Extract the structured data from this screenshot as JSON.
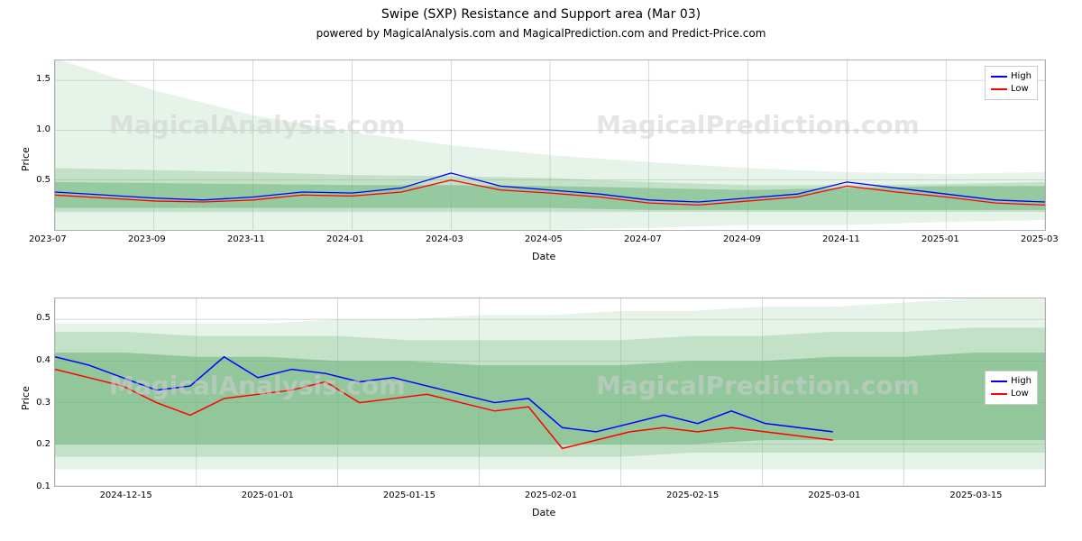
{
  "figure": {
    "title": "Swipe (SXP) Resistance and Support area (Mar 03)",
    "subtitle": "powered by MagicalAnalysis.com and MagicalPrediction.com and Predict-Price.com",
    "background_color": "#ffffff",
    "title_fontsize": 14,
    "subtitle_fontsize": 12
  },
  "legend": {
    "items": [
      {
        "label": "High",
        "color": "#0000ff"
      },
      {
        "label": "Low",
        "color": "#ff0000"
      }
    ],
    "border_color": "#cccccc",
    "background": "#ffffff",
    "fontsize": 10
  },
  "watermarks": {
    "top_left": "MagicalAnalysis.com",
    "top_right": "MagicalPrediction.com",
    "bottom_left": "MagicalAnalysis.com",
    "bottom_right": "MagicalPrediction.com",
    "color": "#d0d0d0",
    "fontsize": 28
  },
  "top_chart": {
    "type": "line_with_bands",
    "xlabel": "Date",
    "ylabel": "Price",
    "label_fontsize": 11,
    "xlim": [
      0,
      20
    ],
    "ylim": [
      0,
      1.7
    ],
    "yticks": [
      0.5,
      1.0,
      1.5
    ],
    "ytick_labels": [
      "0.5",
      "1.0",
      "1.5"
    ],
    "xticks": [
      0,
      2,
      4,
      6,
      8,
      10,
      12,
      14,
      16,
      18,
      20
    ],
    "xtick_labels": [
      "2023-07",
      "2023-09",
      "2023-11",
      "2024-01",
      "2024-03",
      "2024-05",
      "2024-07",
      "2024-09",
      "2024-11",
      "2025-01",
      "2025-03"
    ],
    "grid_color": "#b0b0b0",
    "line_width": 1.3,
    "bands": [
      {
        "color": "#9dcfa4",
        "opacity": 0.25,
        "upper": [
          1.72,
          1.4,
          1.15,
          0.98,
          0.85,
          0.75,
          0.68,
          0.62,
          0.58,
          0.56,
          0.58
        ],
        "lower": [
          0.0,
          0.0,
          0.0,
          0.0,
          0.0,
          0.0,
          0.02,
          0.05,
          0.05,
          0.08,
          0.1
        ]
      },
      {
        "color": "#7fbf8a",
        "opacity": 0.35,
        "upper": [
          0.62,
          0.6,
          0.58,
          0.55,
          0.54,
          0.52,
          0.48,
          0.45,
          0.45,
          0.46,
          0.48
        ],
        "lower": [
          0.18,
          0.18,
          0.18,
          0.18,
          0.18,
          0.18,
          0.18,
          0.18,
          0.18,
          0.18,
          0.18
        ]
      },
      {
        "color": "#5fae6f",
        "opacity": 0.45,
        "upper": [
          0.48,
          0.47,
          0.46,
          0.45,
          0.45,
          0.44,
          0.42,
          0.4,
          0.42,
          0.44,
          0.44
        ],
        "lower": [
          0.22,
          0.22,
          0.22,
          0.22,
          0.22,
          0.22,
          0.2,
          0.2,
          0.2,
          0.2,
          0.2
        ]
      }
    ],
    "series": [
      {
        "name": "High",
        "color": "#0000ff",
        "y": [
          0.38,
          0.35,
          0.32,
          0.3,
          0.33,
          0.38,
          0.37,
          0.42,
          0.57,
          0.44,
          0.4,
          0.36,
          0.3,
          0.28,
          0.32,
          0.36,
          0.48,
          0.42,
          0.36,
          0.3,
          0.28
        ]
      },
      {
        "name": "Low",
        "color": "#ff0000",
        "y": [
          0.35,
          0.32,
          0.29,
          0.28,
          0.3,
          0.35,
          0.34,
          0.38,
          0.5,
          0.4,
          0.37,
          0.33,
          0.27,
          0.25,
          0.29,
          0.33,
          0.44,
          0.38,
          0.33,
          0.27,
          0.25
        ]
      }
    ]
  },
  "bottom_chart": {
    "type": "line_with_bands",
    "xlabel": "Date",
    "ylabel": "Price",
    "label_fontsize": 11,
    "xlim": [
      0,
      14
    ],
    "ylim": [
      0.1,
      0.55
    ],
    "yticks": [
      0.1,
      0.2,
      0.3,
      0.4,
      0.5
    ],
    "ytick_labels": [
      "0.1",
      "0.2",
      "0.3",
      "0.4",
      "0.5"
    ],
    "xticks": [
      0,
      2,
      4,
      6,
      8,
      10,
      12,
      14
    ],
    "xtick_labels": [
      "2024-12-15",
      "2025-01-01",
      "2025-01-15",
      "2025-02-01",
      "2025-02-15",
      "2025-03-01",
      "2025-03-15",
      ""
    ],
    "xtick_offset": 1.0,
    "grid_color": "#b0b0b0",
    "line_width": 1.5,
    "bands": [
      {
        "color": "#9dcfa4",
        "opacity": 0.25,
        "upper": [
          0.49,
          0.49,
          0.49,
          0.49,
          0.5,
          0.5,
          0.51,
          0.51,
          0.52,
          0.52,
          0.53,
          0.53,
          0.54,
          0.55,
          0.55
        ],
        "lower": [
          0.14,
          0.14,
          0.14,
          0.14,
          0.14,
          0.14,
          0.14,
          0.14,
          0.14,
          0.14,
          0.14,
          0.14,
          0.14,
          0.14,
          0.14
        ]
      },
      {
        "color": "#7fbf8a",
        "opacity": 0.35,
        "upper": [
          0.47,
          0.47,
          0.46,
          0.46,
          0.46,
          0.45,
          0.45,
          0.45,
          0.45,
          0.46,
          0.46,
          0.47,
          0.47,
          0.48,
          0.48
        ],
        "lower": [
          0.17,
          0.17,
          0.17,
          0.17,
          0.17,
          0.17,
          0.17,
          0.17,
          0.17,
          0.18,
          0.18,
          0.18,
          0.18,
          0.18,
          0.18
        ]
      },
      {
        "color": "#5fae6f",
        "opacity": 0.5,
        "upper": [
          0.42,
          0.42,
          0.41,
          0.41,
          0.4,
          0.4,
          0.39,
          0.39,
          0.39,
          0.4,
          0.4,
          0.41,
          0.41,
          0.42,
          0.42
        ],
        "lower": [
          0.2,
          0.2,
          0.2,
          0.2,
          0.2,
          0.2,
          0.2,
          0.2,
          0.2,
          0.2,
          0.21,
          0.21,
          0.21,
          0.21,
          0.21
        ]
      }
    ],
    "series": [
      {
        "name": "High",
        "color": "#0000ff",
        "y": [
          0.41,
          0.39,
          0.36,
          0.33,
          0.34,
          0.41,
          0.36,
          0.38,
          0.37,
          0.35,
          0.36,
          0.34,
          0.32,
          0.3,
          0.31,
          0.24,
          0.23,
          0.25,
          0.27,
          0.25,
          0.28,
          0.25,
          0.24,
          0.23
        ]
      },
      {
        "name": "Low",
        "color": "#ff0000",
        "y": [
          0.38,
          0.36,
          0.34,
          0.3,
          0.27,
          0.31,
          0.32,
          0.33,
          0.35,
          0.3,
          0.31,
          0.32,
          0.3,
          0.28,
          0.29,
          0.19,
          0.21,
          0.23,
          0.24,
          0.23,
          0.24,
          0.23,
          0.22,
          0.21
        ]
      }
    ]
  }
}
